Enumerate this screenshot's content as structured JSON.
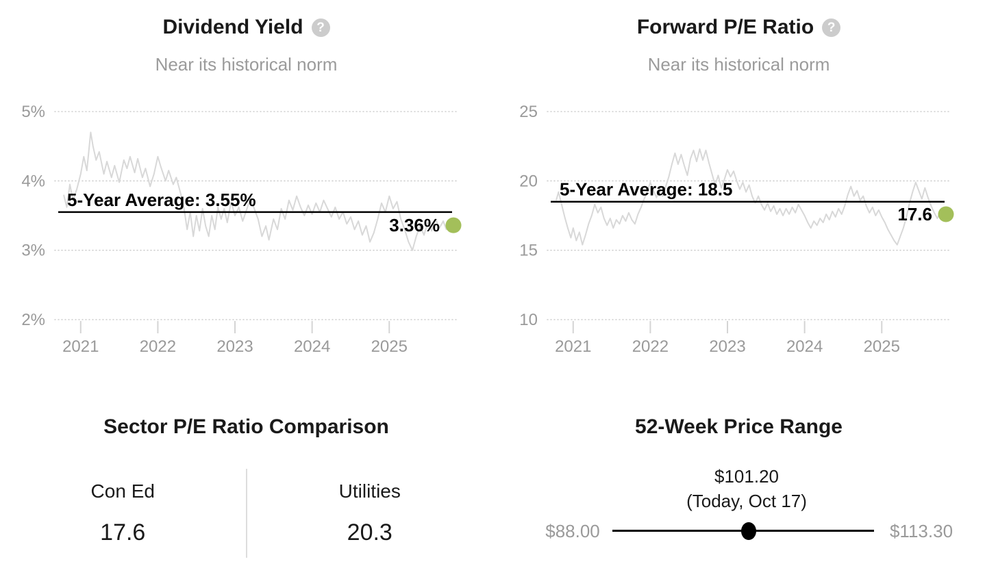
{
  "ui": {
    "help_icon": "?"
  },
  "chart_data": [
    {
      "type": "line",
      "title": "Dividend Yield",
      "subtitle": "Near its historical norm",
      "ylabel": "Dividend Yield (%)",
      "xlabel": "",
      "grid": "dotted-horizontal",
      "legend": "none",
      "xlim": [
        2020.78,
        2025.85
      ],
      "ylim": [
        2,
        5
      ],
      "yticks": [
        {
          "v": 5,
          "label": "5%"
        },
        {
          "v": 4,
          "label": "4%"
        },
        {
          "v": 3,
          "label": "3%"
        },
        {
          "v": 2,
          "label": "2%"
        }
      ],
      "xticks": [
        {
          "v": 2021,
          "label": "2021"
        },
        {
          "v": 2022,
          "label": "2022"
        },
        {
          "v": 2023,
          "label": "2023"
        },
        {
          "v": 2024,
          "label": "2024"
        },
        {
          "v": 2025,
          "label": "2025"
        }
      ],
      "average": {
        "value": 3.55,
        "label": "5-Year Average: 3.55%"
      },
      "current": {
        "value": 3.36,
        "label": "3.36%"
      },
      "line_color": "#d8d8d8",
      "dot_color": "#a3bf5a",
      "series": [
        [
          2020.78,
          3.8
        ],
        [
          2020.82,
          3.62
        ],
        [
          2020.86,
          3.95
        ],
        [
          2020.9,
          3.72
        ],
        [
          2020.95,
          3.88
        ],
        [
          2021.0,
          4.1
        ],
        [
          2021.04,
          4.35
        ],
        [
          2021.08,
          4.15
        ],
        [
          2021.13,
          4.7
        ],
        [
          2021.16,
          4.5
        ],
        [
          2021.2,
          4.3
        ],
        [
          2021.24,
          4.42
        ],
        [
          2021.3,
          4.1
        ],
        [
          2021.34,
          4.28
        ],
        [
          2021.4,
          4.05
        ],
        [
          2021.44,
          4.22
        ],
        [
          2021.5,
          3.98
        ],
        [
          2021.56,
          4.3
        ],
        [
          2021.6,
          4.18
        ],
        [
          2021.64,
          4.35
        ],
        [
          2021.7,
          4.12
        ],
        [
          2021.74,
          4.32
        ],
        [
          2021.8,
          4.05
        ],
        [
          2021.84,
          4.18
        ],
        [
          2021.9,
          3.92
        ],
        [
          2021.95,
          4.1
        ],
        [
          2022.0,
          4.35
        ],
        [
          2022.04,
          4.2
        ],
        [
          2022.1,
          4.0
        ],
        [
          2022.14,
          4.15
        ],
        [
          2022.2,
          3.95
        ],
        [
          2022.24,
          4.05
        ],
        [
          2022.3,
          3.8
        ],
        [
          2022.34,
          3.6
        ],
        [
          2022.38,
          3.3
        ],
        [
          2022.42,
          3.55
        ],
        [
          2022.46,
          3.2
        ],
        [
          2022.5,
          3.5
        ],
        [
          2022.54,
          3.28
        ],
        [
          2022.58,
          3.6
        ],
        [
          2022.62,
          3.35
        ],
        [
          2022.66,
          3.2
        ],
        [
          2022.7,
          3.5
        ],
        [
          2022.74,
          3.3
        ],
        [
          2022.78,
          3.62
        ],
        [
          2022.82,
          3.45
        ],
        [
          2022.86,
          3.6
        ],
        [
          2022.9,
          3.4
        ],
        [
          2022.95,
          3.7
        ],
        [
          2023.0,
          3.5
        ],
        [
          2023.05,
          3.62
        ],
        [
          2023.1,
          3.42
        ],
        [
          2023.15,
          3.58
        ],
        [
          2023.2,
          3.75
        ],
        [
          2023.25,
          3.6
        ],
        [
          2023.3,
          3.45
        ],
        [
          2023.35,
          3.2
        ],
        [
          2023.4,
          3.35
        ],
        [
          2023.44,
          3.15
        ],
        [
          2023.5,
          3.45
        ],
        [
          2023.55,
          3.3
        ],
        [
          2023.6,
          3.6
        ],
        [
          2023.65,
          3.45
        ],
        [
          2023.7,
          3.72
        ],
        [
          2023.75,
          3.58
        ],
        [
          2023.8,
          3.78
        ],
        [
          2023.85,
          3.62
        ],
        [
          2023.9,
          3.5
        ],
        [
          2023.95,
          3.65
        ],
        [
          2024.0,
          3.52
        ],
        [
          2024.05,
          3.68
        ],
        [
          2024.1,
          3.55
        ],
        [
          2024.15,
          3.72
        ],
        [
          2024.2,
          3.6
        ],
        [
          2024.25,
          3.48
        ],
        [
          2024.3,
          3.62
        ],
        [
          2024.35,
          3.45
        ],
        [
          2024.4,
          3.55
        ],
        [
          2024.45,
          3.38
        ],
        [
          2024.5,
          3.48
        ],
        [
          2024.55,
          3.3
        ],
        [
          2024.6,
          3.42
        ],
        [
          2024.65,
          3.22
        ],
        [
          2024.7,
          3.35
        ],
        [
          2024.75,
          3.12
        ],
        [
          2024.8,
          3.25
        ],
        [
          2024.85,
          3.45
        ],
        [
          2024.9,
          3.68
        ],
        [
          2024.95,
          3.55
        ],
        [
          2025.0,
          3.78
        ],
        [
          2025.05,
          3.6
        ],
        [
          2025.1,
          3.7
        ],
        [
          2025.15,
          3.45
        ],
        [
          2025.2,
          3.3
        ],
        [
          2025.25,
          3.12
        ],
        [
          2025.3,
          3.0
        ],
        [
          2025.35,
          3.2
        ],
        [
          2025.4,
          3.35
        ],
        [
          2025.45,
          3.22
        ],
        [
          2025.5,
          3.4
        ],
        [
          2025.55,
          3.28
        ],
        [
          2025.6,
          3.45
        ],
        [
          2025.65,
          3.32
        ],
        [
          2025.7,
          3.42
        ],
        [
          2025.74,
          3.3
        ],
        [
          2025.78,
          3.44
        ],
        [
          2025.82,
          3.32
        ],
        [
          2025.85,
          3.36
        ]
      ]
    },
    {
      "type": "line",
      "title": "Forward P/E Ratio",
      "subtitle": "Near its historical norm",
      "ylabel": "Forward P/E Ratio",
      "xlabel": "",
      "grid": "dotted-horizontal",
      "legend": "none",
      "xlim": [
        2020.78,
        2025.85
      ],
      "ylim": [
        10,
        25
      ],
      "yticks": [
        {
          "v": 25,
          "label": "25"
        },
        {
          "v": 20,
          "label": "20"
        },
        {
          "v": 15,
          "label": "15"
        },
        {
          "v": 10,
          "label": "10"
        }
      ],
      "xticks": [
        {
          "v": 2021,
          "label": "2021"
        },
        {
          "v": 2022,
          "label": "2022"
        },
        {
          "v": 2023,
          "label": "2023"
        },
        {
          "v": 2024,
          "label": "2024"
        },
        {
          "v": 2025,
          "label": "2025"
        }
      ],
      "average": {
        "value": 18.5,
        "label": "5-Year Average: 18.5"
      },
      "current": {
        "value": 17.6,
        "label": "17.6"
      },
      "line_color": "#d8d8d8",
      "dot_color": "#a3bf5a",
      "series": [
        [
          2020.78,
          18.6
        ],
        [
          2020.81,
          19.2
        ],
        [
          2020.85,
          18.3
        ],
        [
          2020.89,
          17.4
        ],
        [
          2020.93,
          16.6
        ],
        [
          2020.97,
          15.9
        ],
        [
          2021.0,
          16.6
        ],
        [
          2021.04,
          15.7
        ],
        [
          2021.08,
          16.3
        ],
        [
          2021.12,
          15.4
        ],
        [
          2021.16,
          16.1
        ],
        [
          2021.2,
          16.9
        ],
        [
          2021.24,
          17.5
        ],
        [
          2021.28,
          18.3
        ],
        [
          2021.32,
          17.7
        ],
        [
          2021.36,
          18.1
        ],
        [
          2021.4,
          17.3
        ],
        [
          2021.44,
          16.8
        ],
        [
          2021.48,
          17.3
        ],
        [
          2021.52,
          16.6
        ],
        [
          2021.56,
          17.2
        ],
        [
          2021.6,
          16.9
        ],
        [
          2021.64,
          17.5
        ],
        [
          2021.68,
          17.1
        ],
        [
          2021.72,
          17.7
        ],
        [
          2021.76,
          17.2
        ],
        [
          2021.8,
          16.9
        ],
        [
          2021.84,
          17.6
        ],
        [
          2021.88,
          18.1
        ],
        [
          2021.92,
          18.7
        ],
        [
          2021.96,
          19.2
        ],
        [
          2022.0,
          19.9
        ],
        [
          2022.04,
          19.3
        ],
        [
          2022.08,
          18.8
        ],
        [
          2022.12,
          19.5
        ],
        [
          2022.16,
          18.9
        ],
        [
          2022.2,
          19.6
        ],
        [
          2022.24,
          20.3
        ],
        [
          2022.28,
          21.2
        ],
        [
          2022.32,
          22.0
        ],
        [
          2022.36,
          21.2
        ],
        [
          2022.4,
          21.9
        ],
        [
          2022.44,
          21.1
        ],
        [
          2022.48,
          20.4
        ],
        [
          2022.52,
          21.6
        ],
        [
          2022.56,
          22.2
        ],
        [
          2022.6,
          21.4
        ],
        [
          2022.64,
          22.3
        ],
        [
          2022.68,
          21.5
        ],
        [
          2022.72,
          22.2
        ],
        [
          2022.76,
          21.3
        ],
        [
          2022.8,
          20.5
        ],
        [
          2022.84,
          19.7
        ],
        [
          2022.88,
          20.4
        ],
        [
          2022.92,
          19.5
        ],
        [
          2022.96,
          20.1
        ],
        [
          2023.0,
          20.8
        ],
        [
          2023.04,
          20.3
        ],
        [
          2023.08,
          20.7
        ],
        [
          2023.12,
          20.0
        ],
        [
          2023.16,
          19.4
        ],
        [
          2023.2,
          19.9
        ],
        [
          2023.24,
          19.2
        ],
        [
          2023.28,
          19.7
        ],
        [
          2023.32,
          18.9
        ],
        [
          2023.36,
          18.4
        ],
        [
          2023.4,
          18.9
        ],
        [
          2023.44,
          18.3
        ],
        [
          2023.48,
          17.9
        ],
        [
          2023.52,
          18.4
        ],
        [
          2023.56,
          17.8
        ],
        [
          2023.6,
          18.2
        ],
        [
          2023.64,
          17.6
        ],
        [
          2023.68,
          18.0
        ],
        [
          2023.72,
          17.5
        ],
        [
          2023.76,
          18.0
        ],
        [
          2023.8,
          17.6
        ],
        [
          2023.84,
          18.1
        ],
        [
          2023.88,
          17.7
        ],
        [
          2023.92,
          18.3
        ],
        [
          2023.96,
          17.9
        ],
        [
          2024.0,
          17.5
        ],
        [
          2024.04,
          17.0
        ],
        [
          2024.08,
          16.6
        ],
        [
          2024.12,
          17.1
        ],
        [
          2024.16,
          16.8
        ],
        [
          2024.2,
          17.3
        ],
        [
          2024.24,
          17.0
        ],
        [
          2024.28,
          17.6
        ],
        [
          2024.32,
          17.2
        ],
        [
          2024.36,
          17.8
        ],
        [
          2024.4,
          17.4
        ],
        [
          2024.44,
          18.0
        ],
        [
          2024.48,
          17.6
        ],
        [
          2024.52,
          18.2
        ],
        [
          2024.56,
          19.0
        ],
        [
          2024.6,
          19.6
        ],
        [
          2024.64,
          18.9
        ],
        [
          2024.68,
          19.3
        ],
        [
          2024.72,
          18.6
        ],
        [
          2024.76,
          18.9
        ],
        [
          2024.8,
          18.2
        ],
        [
          2024.84,
          17.7
        ],
        [
          2024.88,
          18.1
        ],
        [
          2024.92,
          17.5
        ],
        [
          2024.96,
          17.9
        ],
        [
          2025.0,
          17.4
        ],
        [
          2025.04,
          17.0
        ],
        [
          2025.08,
          16.5
        ],
        [
          2025.12,
          16.1
        ],
        [
          2025.16,
          15.7
        ],
        [
          2025.2,
          15.4
        ],
        [
          2025.24,
          16.0
        ],
        [
          2025.28,
          16.6
        ],
        [
          2025.32,
          17.4
        ],
        [
          2025.36,
          18.4
        ],
        [
          2025.4,
          19.2
        ],
        [
          2025.44,
          19.9
        ],
        [
          2025.48,
          19.3
        ],
        [
          2025.52,
          18.7
        ],
        [
          2025.56,
          19.5
        ],
        [
          2025.6,
          18.8
        ],
        [
          2025.64,
          18.2
        ],
        [
          2025.68,
          17.7
        ],
        [
          2025.72,
          17.3
        ],
        [
          2025.76,
          17.8
        ],
        [
          2025.8,
          17.4
        ],
        [
          2025.85,
          17.6
        ]
      ]
    },
    {
      "type": "table",
      "title": "Sector P/E Ratio Comparison",
      "columns": [
        {
          "label": "Con Ed",
          "value": "17.6"
        },
        {
          "label": "Utilities",
          "value": "20.3"
        }
      ]
    },
    {
      "type": "range",
      "title": "52-Week Price Range",
      "min": 88.0,
      "max": 113.3,
      "current": 101.2,
      "min_label": "$88.00",
      "max_label": "$113.30",
      "current_label": "$101.20",
      "current_sublabel": "(Today, Oct 17)"
    }
  ]
}
